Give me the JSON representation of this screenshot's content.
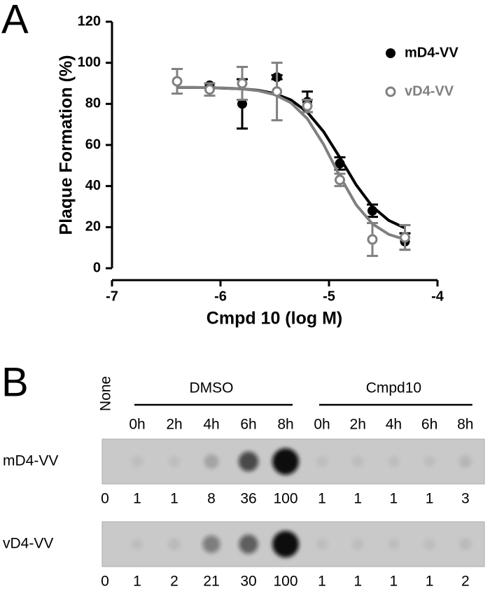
{
  "chart_data": {
    "type": "scatter",
    "panel_label": "A",
    "xlabel": "Cmpd 10 (log M)",
    "ylabel": "Plaque Formation (%)",
    "xlim": [
      -7,
      -4
    ],
    "xticks": [
      -7,
      -6,
      -5,
      -4
    ],
    "ylim": [
      0,
      120
    ],
    "yticks": [
      0,
      20,
      40,
      60,
      80,
      100,
      120
    ],
    "legend": "upper right",
    "series": [
      {
        "name": "mD4-VV",
        "color": "#000000",
        "filled": true,
        "x": [
          -6.1,
          -5.8,
          -5.48,
          -5.2,
          -4.9,
          -4.6,
          -4.3
        ],
        "values": [
          89,
          80,
          93,
          81,
          51,
          28,
          13
        ],
        "errors": [
          1,
          12,
          1,
          5,
          3,
          3,
          4
        ],
        "fit": {
          "x": [
            -6.4,
            -6.25,
            -6.1,
            -5.95,
            -5.8,
            -5.65,
            -5.5,
            -5.35,
            -5.2,
            -5.05,
            -4.9,
            -4.75,
            -4.6,
            -4.45,
            -4.3
          ],
          "values": [
            88,
            88,
            87.9,
            87.6,
            87.3,
            86.6,
            85,
            81.9,
            76,
            66.5,
            53.9,
            40.6,
            30,
            23.3,
            19.6
          ]
        }
      },
      {
        "name": "vD4-VV",
        "color": "#808080",
        "filled": false,
        "x": [
          -6.4,
          -6.1,
          -5.8,
          -5.48,
          -5.2,
          -4.9,
          -4.6,
          -4.3
        ],
        "values": [
          91,
          87,
          90,
          86,
          79,
          43,
          14,
          15
        ],
        "errors": [
          6,
          3,
          8,
          14,
          3,
          3,
          8,
          6
        ],
        "fit": {
          "x": [
            -6.4,
            -6.25,
            -6.1,
            -5.95,
            -5.8,
            -5.65,
            -5.5,
            -5.35,
            -5.2,
            -5.05,
            -4.9,
            -4.75,
            -4.6,
            -4.45,
            -4.3
          ],
          "values": [
            88,
            88,
            87.9,
            87.7,
            87.3,
            86.4,
            84.5,
            80.5,
            72.8,
            60.3,
            44.8,
            30.9,
            21.6,
            16.5,
            14
          ]
        }
      }
    ]
  },
  "blot": {
    "panel_label": "B",
    "lane_none": "None",
    "groups": [
      {
        "name": "DMSO",
        "times": [
          "0h",
          "2h",
          "4h",
          "6h",
          "8h"
        ]
      },
      {
        "name": "Cmpd10",
        "times": [
          "0h",
          "2h",
          "4h",
          "6h",
          "8h"
        ]
      }
    ],
    "rows": [
      {
        "name": "mD4-VV",
        "values": [
          0,
          1,
          1,
          8,
          36,
          100,
          1,
          1,
          1,
          1,
          3
        ]
      },
      {
        "name": "vD4-VV",
        "values": [
          0,
          1,
          2,
          21,
          30,
          100,
          1,
          1,
          1,
          1,
          2
        ]
      }
    ]
  }
}
